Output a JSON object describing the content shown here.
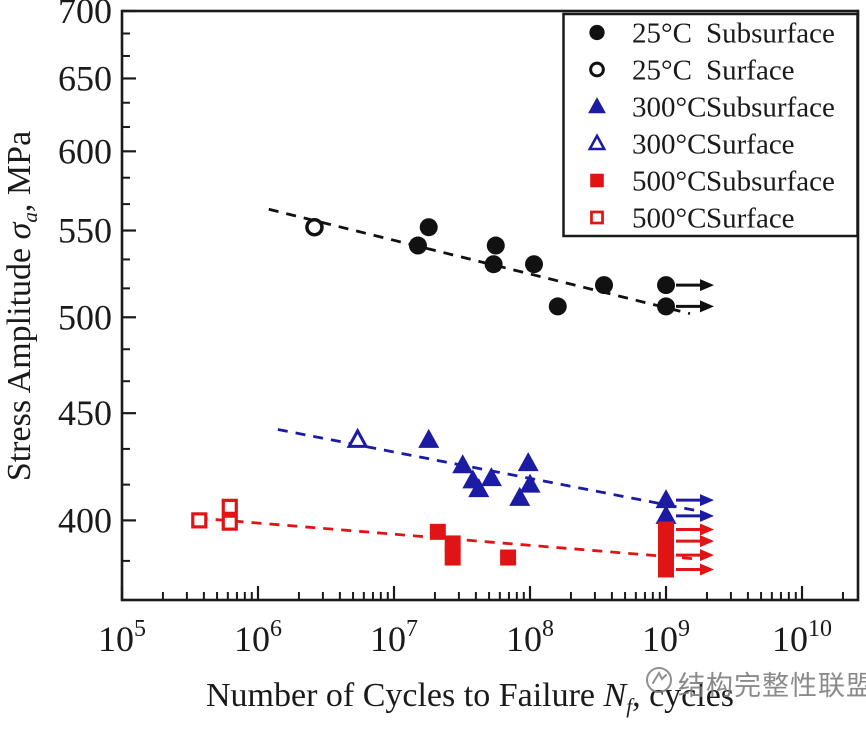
{
  "figure": {
    "watermark": {
      "text": "结构完整性联盟",
      "color": "#7d7d7d"
    },
    "colors": {
      "frame": "#1a1a1a",
      "black_series": "#111111",
      "blue_series": "#1b1ba3",
      "red_series": "#e01414",
      "background": "#ffffff"
    }
  },
  "chart_data": {
    "type": "scatter",
    "title": "",
    "xlabel": "Number of Cycles to Failure Nf, cycles",
    "xlabel_parts": [
      {
        "text": "Number of Cycles to Failure ",
        "style": "normal"
      },
      {
        "text": "N",
        "style": "italic"
      },
      {
        "text": "f",
        "style": "subscript-italic"
      },
      {
        "text": ", cycles",
        "style": "normal"
      }
    ],
    "ylabel": "Stress Amplitude σa, MPa",
    "ylabel_parts": [
      {
        "text": "Stress Amplitude ",
        "style": "normal"
      },
      {
        "text": "σ",
        "style": "italic"
      },
      {
        "text": "a",
        "style": "subscript-italic"
      },
      {
        "text": ", MPa",
        "style": "normal"
      }
    ],
    "x_scale": "log",
    "x_range": [
      100000,
      25800000000
    ],
    "x_major_ticks": [
      {
        "value": 100000,
        "base": "10",
        "exp": "5"
      },
      {
        "value": 1000000,
        "base": "10",
        "exp": "6"
      },
      {
        "value": 10000000,
        "base": "10",
        "exp": "7"
      },
      {
        "value": 100000000,
        "base": "10",
        "exp": "8"
      },
      {
        "value": 1000000000,
        "base": "10",
        "exp": "9"
      },
      {
        "value": 10000000000,
        "base": "10",
        "exp": "10"
      }
    ],
    "y_scale": "log",
    "y_range": [
      366.5,
      700
    ],
    "y_major_ticks": [
      {
        "value": 700,
        "label": "700"
      },
      {
        "value": 650,
        "label": "650"
      },
      {
        "value": 600,
        "label": "600"
      },
      {
        "value": 550,
        "label": "550"
      },
      {
        "value": 500,
        "label": "500"
      },
      {
        "value": 450,
        "label": "450"
      },
      {
        "value": 400,
        "label": "400"
      }
    ],
    "y_minor_per_interval": 2,
    "grid": false,
    "legend_position": "top-right",
    "series": [
      {
        "name": "25°C Subsurface",
        "temp": "25°C",
        "type": "Subsurface",
        "marker": "circle",
        "filled": true,
        "color": "#111111",
        "points": [
          [
            15000000,
            541
          ],
          [
            18000000,
            552
          ],
          [
            56000000,
            541
          ],
          [
            54000000,
            530
          ],
          [
            107000000,
            530
          ],
          [
            160000000,
            506
          ],
          [
            350000000,
            518
          ]
        ],
        "runouts": [
          [
            1000000000,
            518
          ],
          [
            1000000000,
            506
          ]
        ]
      },
      {
        "name": "25°C Surface",
        "temp": "25°C",
        "type": "Surface",
        "marker": "circle",
        "filled": false,
        "color": "#111111",
        "points": [
          [
            2600000,
            552
          ]
        ],
        "runouts": []
      },
      {
        "name": "300°C Subsurface",
        "temp": "300°C",
        "type": "Subsurface",
        "marker": "triangle",
        "filled": true,
        "color": "#1b1ba3",
        "points": [
          [
            18000000,
            437
          ],
          [
            32000000,
            425
          ],
          [
            38000000,
            418
          ],
          [
            42000000,
            414
          ],
          [
            52000000,
            419
          ],
          [
            84000000,
            410
          ],
          [
            97000000,
            426
          ],
          [
            100000000,
            416
          ]
        ],
        "runouts": [
          [
            1000000000,
            409
          ],
          [
            1000000000,
            402
          ]
        ]
      },
      {
        "name": "300°C Surface",
        "temp": "300°C",
        "type": "Surface",
        "marker": "triangle",
        "filled": false,
        "color": "#1b1ba3",
        "points": [
          [
            5400000,
            437
          ]
        ],
        "runouts": []
      },
      {
        "name": "500°C Subsurface",
        "temp": "500°C",
        "type": "Subsurface",
        "marker": "square",
        "filled": true,
        "color": "#e01414",
        "points": [
          [
            21000000,
            395
          ],
          [
            27000000,
            390
          ],
          [
            27000000,
            384
          ],
          [
            69000000,
            384
          ]
        ],
        "runouts": [
          [
            1000000000,
            396
          ],
          [
            1000000000,
            391
          ],
          [
            1000000000,
            385
          ],
          [
            1000000000,
            379
          ]
        ]
      },
      {
        "name": "500°C Surface",
        "temp": "500°C",
        "type": "Surface",
        "marker": "square",
        "filled": false,
        "color": "#e01414",
        "points": [
          [
            370000,
            400
          ],
          [
            620000,
            406
          ],
          [
            620000,
            399
          ]
        ],
        "runouts": []
      }
    ],
    "trend_lines": [
      {
        "series": "25°C",
        "color": "#111111",
        "from": [
          1200000,
          563
        ],
        "to": [
          1500000000,
          502
        ]
      },
      {
        "series": "300°C",
        "color": "#1b1ba3",
        "from": [
          1400000,
          442
        ],
        "to": [
          1780000000,
          404
        ]
      },
      {
        "series": "500°C",
        "color": "#e01414",
        "from": [
          360000,
          401
        ],
        "to": [
          1600000000,
          383.5
        ]
      }
    ],
    "legend": {
      "items": [
        {
          "temp": "25°C",
          "type": "Subsurface",
          "marker": "circle",
          "filled": true,
          "color": "#111111"
        },
        {
          "temp": "25°C",
          "type": "Surface",
          "marker": "circle",
          "filled": false,
          "color": "#111111"
        },
        {
          "temp": "300°C",
          "type": "Subsurface",
          "marker": "triangle",
          "filled": true,
          "color": "#1b1ba3"
        },
        {
          "temp": "300°C",
          "type": "Surface",
          "marker": "triangle",
          "filled": false,
          "color": "#1b1ba3"
        },
        {
          "temp": "500°C",
          "type": "Subsurface",
          "marker": "square",
          "filled": true,
          "color": "#e01414"
        },
        {
          "temp": "500°C",
          "type": "Surface",
          "marker": "square",
          "filled": false,
          "color": "#e01414"
        }
      ]
    }
  }
}
